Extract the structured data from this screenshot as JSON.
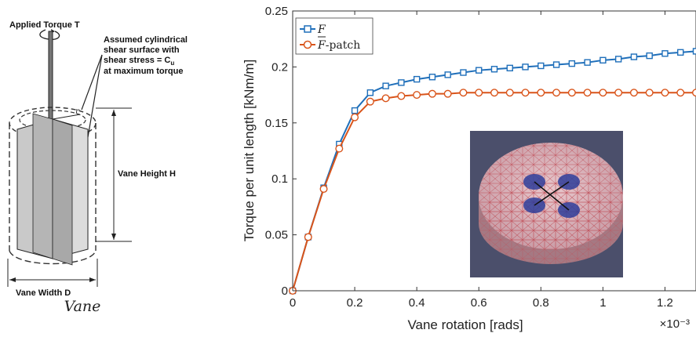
{
  "diagram": {
    "applied_torque": "Applied Torque T",
    "assumed_line1": "Assumed cylindrical",
    "assumed_line2": "shear surface with",
    "assumed_line3": "shear stress = C",
    "assumed_sub": "u",
    "assumed_line4": "at maximum torque",
    "vane_height": "Vane Height H",
    "vane_width": "Vane Width D",
    "caption": "Vane"
  },
  "chart_data": {
    "type": "line",
    "title": "",
    "xlabel": "Vane rotation [rads]",
    "ylabel": "Torque per unit length [kNm/m]",
    "x_multiplier": "×10⁻³",
    "xlim": [
      0,
      1.3
    ],
    "ylim": [
      0,
      0.25
    ],
    "xticks": [
      0,
      0.2,
      0.4,
      0.6,
      0.8,
      1,
      1.2
    ],
    "xtick_labels": [
      "0",
      "0.2",
      "0.4",
      "0.6",
      "0.8",
      "1",
      "1.2"
    ],
    "yticks": [
      0,
      0.05,
      0.1,
      0.15,
      0.2,
      0.25
    ],
    "ytick_labels": [
      "0",
      "0.05",
      "0.1",
      "0.15",
      "0.2",
      "0.25"
    ],
    "legend_position": "top-left",
    "series": [
      {
        "name": "F",
        "color": "#1f6fba",
        "marker": "square",
        "x": [
          0,
          0.05,
          0.1,
          0.15,
          0.2,
          0.25,
          0.3,
          0.35,
          0.4,
          0.45,
          0.5,
          0.55,
          0.6,
          0.65,
          0.7,
          0.75,
          0.8,
          0.85,
          0.9,
          0.95,
          1.0,
          1.05,
          1.1,
          1.15,
          1.2,
          1.25,
          1.3
        ],
        "y": [
          0,
          0.048,
          0.092,
          0.131,
          0.161,
          0.177,
          0.183,
          0.186,
          0.189,
          0.191,
          0.193,
          0.195,
          0.197,
          0.198,
          0.199,
          0.2,
          0.201,
          0.202,
          0.203,
          0.204,
          0.206,
          0.207,
          0.209,
          0.21,
          0.212,
          0.213,
          0.214
        ]
      },
      {
        "name": "F-patch",
        "color": "#d9541a",
        "marker": "circle",
        "x": [
          0,
          0.05,
          0.1,
          0.15,
          0.2,
          0.25,
          0.3,
          0.35,
          0.4,
          0.45,
          0.5,
          0.55,
          0.6,
          0.65,
          0.7,
          0.75,
          0.8,
          0.85,
          0.9,
          0.95,
          1.0,
          1.05,
          1.1,
          1.15,
          1.2,
          1.25,
          1.3
        ],
        "y": [
          0,
          0.048,
          0.091,
          0.127,
          0.155,
          0.169,
          0.172,
          0.174,
          0.175,
          0.176,
          0.176,
          0.177,
          0.177,
          0.177,
          0.177,
          0.177,
          0.177,
          0.177,
          0.177,
          0.177,
          0.177,
          0.177,
          0.177,
          0.177,
          0.177,
          0.177,
          0.177
        ]
      }
    ],
    "legend": [
      {
        "label": "F",
        "bar": false
      },
      {
        "label": "F",
        "suffix": "-patch",
        "bar": true
      }
    ]
  }
}
